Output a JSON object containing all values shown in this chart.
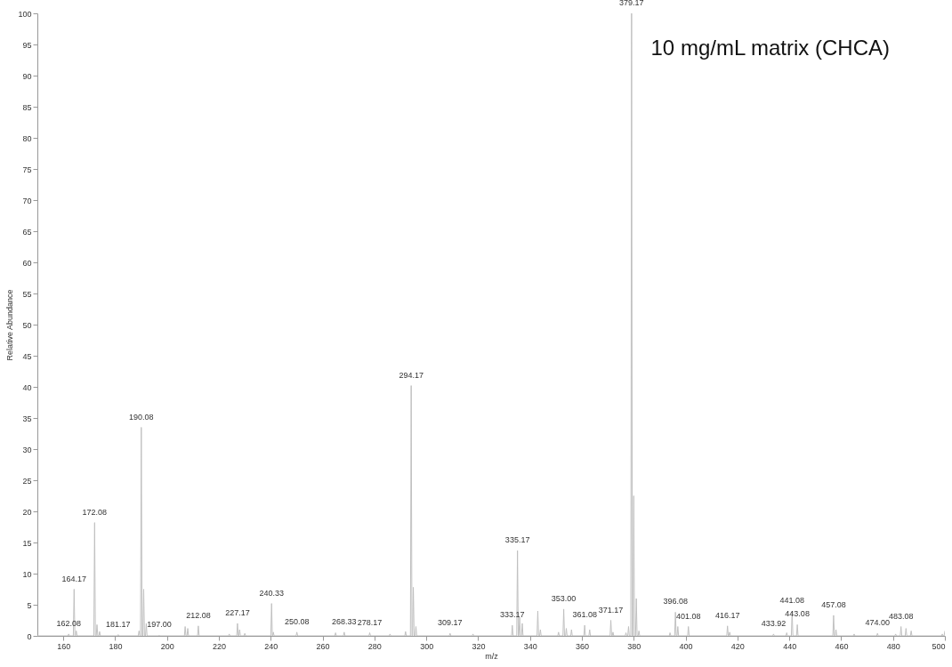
{
  "chart_data": {
    "type": "line",
    "xlabel": "m/z",
    "ylabel": "Relative Abundance",
    "xlim": [
      150,
      500
    ],
    "xticks": [
      160,
      180,
      200,
      220,
      240,
      260,
      280,
      300,
      320,
      340,
      360,
      380,
      400,
      420,
      440,
      460,
      480,
      500
    ],
    "ylim": [
      0,
      100
    ],
    "yticks": [
      0,
      5,
      10,
      15,
      20,
      25,
      30,
      35,
      40,
      45,
      50,
      55,
      60,
      65,
      70,
      75,
      80,
      85,
      90,
      95,
      100
    ],
    "grid": false,
    "marker": "none",
    "line_style": "solid",
    "series": [
      {
        "color": "#c0c0c0",
        "x": [
          150,
          161.78,
          162.08,
          162.38,
          163.87,
          164.17,
          164.47,
          164.7,
          165,
          165.3,
          171.78,
          172.08,
          172.38,
          172.7,
          173,
          173.3,
          173.7,
          174,
          174.3,
          180.87,
          181.17,
          181.47,
          188.9,
          189.2,
          189.5,
          189.78,
          190.08,
          190.38,
          190.7,
          191,
          191.3,
          191.7,
          192,
          192.3,
          196.7,
          197,
          197.3,
          206.7,
          207,
          207.3,
          207.7,
          208,
          208.3,
          211.78,
          212.08,
          212.38,
          223.7,
          224,
          224.3,
          226.87,
          227.17,
          227.47,
          227.7,
          228,
          228.3,
          229.7,
          230,
          230.3,
          240.03,
          240.33,
          240.63,
          240.7,
          241,
          241.3,
          249.78,
          250.08,
          250.38,
          264.7,
          265,
          265.3,
          268.03,
          268.33,
          268.63,
          277.87,
          278.17,
          278.47,
          285.7,
          286,
          286.3,
          291.7,
          292,
          292.3,
          293.87,
          294.17,
          294.47,
          294.7,
          295,
          295.3,
          295.7,
          296,
          296.3,
          308.87,
          309.17,
          309.47,
          317.7,
          318,
          318.3,
          332.87,
          333.17,
          333.47,
          334.87,
          335.17,
          335.47,
          335.7,
          336,
          336.3,
          336.7,
          337,
          337.3,
          342.7,
          343,
          343.3,
          343.7,
          344,
          344.3,
          350.7,
          351,
          351.3,
          352.7,
          353,
          353.3,
          353.7,
          354,
          354.3,
          355.7,
          356,
          356.3,
          360.78,
          361.08,
          361.38,
          362.7,
          363,
          363.3,
          370.87,
          371.17,
          371.47,
          371.7,
          372,
          372.3,
          376.7,
          377,
          377.3,
          377.7,
          378,
          378.3,
          378.87,
          379.17,
          379.47,
          379.7,
          380,
          380.3,
          380.7,
          381,
          381.3,
          381.7,
          382,
          382.3,
          393.7,
          394,
          394.3,
          395.78,
          396.08,
          396.38,
          396.7,
          397,
          397.3,
          400.78,
          401.08,
          401.38,
          415.87,
          416.17,
          416.47,
          416.7,
          417,
          417.3,
          433.62,
          433.92,
          434.22,
          438.7,
          439,
          439.3,
          440.78,
          441.08,
          441.38,
          442.78,
          443.08,
          443.38,
          456.78,
          457.08,
          457.38,
          457.7,
          458,
          458.3,
          464.7,
          465,
          465.3,
          473.7,
          474,
          474.3,
          480.7,
          481,
          481.3,
          482.78,
          483.08,
          483.38,
          484.7,
          485,
          485.3,
          486.7,
          487,
          487.3,
          498.7,
          499,
          499.3,
          499.7,
          500
        ],
        "values": [
          0,
          0,
          0.3,
          0,
          0,
          7.5,
          0,
          0,
          0.8,
          0,
          0,
          18.2,
          0,
          0,
          1.8,
          0,
          0,
          0.7,
          0,
          0,
          0.2,
          0,
          0,
          0.8,
          0,
          0,
          33.5,
          0,
          0,
          7.5,
          0,
          0,
          2,
          0,
          0,
          0.1,
          0,
          0,
          1.5,
          0,
          0,
          1.2,
          0,
          0,
          1.6,
          0,
          0,
          0.3,
          0,
          0,
          2,
          0,
          0,
          1,
          0,
          0,
          0.4,
          0,
          0,
          5.2,
          0,
          0,
          0.6,
          0,
          0,
          0.6,
          0,
          0,
          0.5,
          0,
          0,
          0.6,
          0,
          0,
          0.5,
          0,
          0,
          0.3,
          0,
          0,
          0.7,
          0,
          0,
          40.2,
          0,
          0,
          7.8,
          0,
          0,
          1.5,
          0,
          0,
          0.4,
          0,
          0,
          0.3,
          0,
          0,
          1.7,
          0,
          0,
          13.7,
          0,
          0,
          3,
          0,
          0,
          2,
          0,
          0,
          4,
          0,
          0,
          1,
          0,
          0,
          0.6,
          0,
          0,
          4.3,
          0,
          0,
          1.2,
          0,
          0,
          1,
          0,
          0,
          1.7,
          0,
          0,
          1,
          0,
          0,
          2.5,
          0,
          0,
          0.6,
          0,
          0,
          0.5,
          0,
          0,
          1.5,
          0,
          0,
          100,
          0,
          0,
          22.5,
          0,
          0,
          6,
          0,
          0,
          0.8,
          0,
          0,
          0.5,
          0,
          0,
          3.8,
          0,
          0,
          1.5,
          0,
          0,
          1.5,
          0,
          0,
          1.6,
          0,
          0,
          0.6,
          0,
          0,
          0.3,
          0,
          0,
          0.5,
          0,
          0,
          4,
          0,
          0,
          1.8,
          0,
          0,
          3.3,
          0,
          0,
          1,
          0,
          0,
          0.3,
          0,
          0,
          0.4,
          0,
          0,
          0.3,
          0,
          0,
          1.5,
          0,
          0,
          1.2,
          0,
          0,
          0.8,
          0,
          0,
          0.3,
          0,
          0,
          0.8
        ]
      }
    ],
    "annotations": [
      {
        "text": "162.08",
        "x": 162.08,
        "y": 0.3
      },
      {
        "text": "164.17",
        "x": 164.17,
        "y": 7.5
      },
      {
        "text": "172.08",
        "x": 172.08,
        "y": 18.2
      },
      {
        "text": "181.17",
        "x": 181.17,
        "y": 0.2
      },
      {
        "text": "190.08",
        "x": 190.08,
        "y": 33.5
      },
      {
        "text": "197.00",
        "x": 197,
        "y": 0.1
      },
      {
        "text": "212.08",
        "x": 212.08,
        "y": 1.6
      },
      {
        "text": "227.17",
        "x": 227.17,
        "y": 2
      },
      {
        "text": "240.33",
        "x": 240.33,
        "y": 5.2
      },
      {
        "text": "250.08",
        "x": 250.08,
        "y": 0.6
      },
      {
        "text": "268.33",
        "x": 268.33,
        "y": 0.6
      },
      {
        "text": "278.17",
        "x": 278.17,
        "y": 0.5
      },
      {
        "text": "294.17",
        "x": 294.17,
        "y": 40.2
      },
      {
        "text": "309.17",
        "x": 309.17,
        "y": 0.4
      },
      {
        "text": "333.17",
        "x": 333.17,
        "y": 1.7
      },
      {
        "text": "335.17",
        "x": 335.17,
        "y": 13.7
      },
      {
        "text": "353.00",
        "x": 353,
        "y": 4.3
      },
      {
        "text": "361.08",
        "x": 361.08,
        "y": 1.7
      },
      {
        "text": "371.17",
        "x": 371.17,
        "y": 2.5
      },
      {
        "text": "379.17",
        "x": 379.17,
        "y": 100
      },
      {
        "text": "396.08",
        "x": 396.08,
        "y": 3.8
      },
      {
        "text": "401.08",
        "x": 401.08,
        "y": 1.5
      },
      {
        "text": "416.17",
        "x": 416.17,
        "y": 1.6
      },
      {
        "text": "433.92",
        "x": 433.92,
        "y": 0.3
      },
      {
        "text": "441.08",
        "x": 441.08,
        "y": 4
      },
      {
        "text": "443.08",
        "x": 443.08,
        "y": 1.8
      },
      {
        "text": "457.08",
        "x": 457.08,
        "y": 3.3
      },
      {
        "text": "474.00",
        "x": 474,
        "y": 0.4
      },
      {
        "text": "483.08",
        "x": 483.08,
        "y": 1.5
      },
      "10 mg/mL matrix (CHCA)"
    ]
  }
}
